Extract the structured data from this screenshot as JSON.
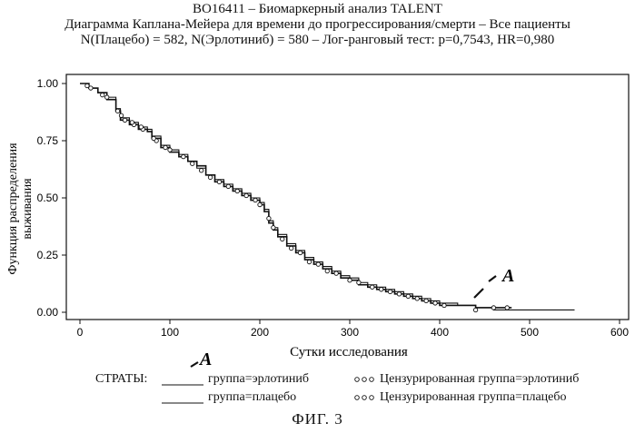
{
  "header": {
    "line1": "BO16411 – Биомаркерный анализ TALENT",
    "line2": "Диаграмма Каплана-Мейера для времени до прогрессирования/смерти – Все пациенты",
    "line3": "N(Плацебо) = 582, N(Эрлотиниб) = 580 – Лог-ранговый тест: p=0,7543, HR=0,980"
  },
  "chart_data": {
    "type": "line",
    "title": "Диаграмма Каплана-Мейера для времени до прогрессирования/смерти – Все пациенты",
    "xlabel": "Сутки исследования",
    "ylabel": "Функция распределения выживания",
    "xlim": [
      0,
      600
    ],
    "ylim": [
      0,
      1.0
    ],
    "x_ticks": [
      0,
      100,
      200,
      300,
      400,
      500,
      600
    ],
    "y_ticks": [
      0.0,
      0.25,
      0.5,
      0.75,
      1.0
    ],
    "x_tick_labels": [
      "0",
      "100",
      "200",
      "300",
      "400",
      "500",
      "600"
    ],
    "y_tick_labels": [
      "0.00",
      "0.25",
      "0.50",
      "0.75",
      "1.00"
    ],
    "grid": false,
    "series": [
      {
        "name": "группа=эрлотиниб",
        "x": [
          0,
          10,
          20,
          30,
          40,
          45,
          55,
          65,
          75,
          80,
          90,
          100,
          110,
          120,
          130,
          140,
          150,
          160,
          170,
          180,
          190,
          200,
          205,
          210,
          215,
          220,
          230,
          240,
          250,
          260,
          270,
          280,
          290,
          300,
          310,
          320,
          330,
          340,
          350,
          360,
          370,
          380,
          390,
          400,
          420,
          440,
          460,
          480
        ],
        "y": [
          1.0,
          0.98,
          0.96,
          0.93,
          0.88,
          0.84,
          0.82,
          0.8,
          0.79,
          0.76,
          0.72,
          0.7,
          0.68,
          0.66,
          0.64,
          0.6,
          0.57,
          0.55,
          0.53,
          0.51,
          0.49,
          0.47,
          0.44,
          0.39,
          0.36,
          0.33,
          0.29,
          0.26,
          0.23,
          0.21,
          0.19,
          0.17,
          0.15,
          0.14,
          0.12,
          0.11,
          0.1,
          0.09,
          0.08,
          0.07,
          0.06,
          0.05,
          0.04,
          0.03,
          0.03,
          0.02,
          0.02,
          0.02
        ]
      },
      {
        "name": "группа=плацебо",
        "x": [
          0,
          10,
          20,
          30,
          40,
          45,
          55,
          65,
          75,
          80,
          90,
          100,
          110,
          120,
          130,
          140,
          150,
          160,
          170,
          180,
          190,
          200,
          205,
          210,
          215,
          220,
          230,
          240,
          250,
          260,
          270,
          280,
          290,
          300,
          310,
          320,
          330,
          340,
          350,
          360,
          370,
          380,
          390,
          400,
          420,
          440,
          460,
          480,
          500,
          520,
          550
        ],
        "y": [
          1.0,
          0.98,
          0.96,
          0.94,
          0.89,
          0.85,
          0.83,
          0.81,
          0.8,
          0.77,
          0.73,
          0.71,
          0.69,
          0.66,
          0.63,
          0.6,
          0.58,
          0.56,
          0.54,
          0.52,
          0.5,
          0.48,
          0.45,
          0.4,
          0.37,
          0.34,
          0.3,
          0.27,
          0.24,
          0.22,
          0.2,
          0.18,
          0.16,
          0.15,
          0.13,
          0.12,
          0.11,
          0.1,
          0.09,
          0.08,
          0.07,
          0.06,
          0.05,
          0.04,
          0.03,
          0.02,
          0.01,
          0.01,
          0.01,
          0.01,
          0.01
        ]
      }
    ],
    "censored_markers": {
      "эрлотиниб": [
        [
          8,
          0.99
        ],
        [
          25,
          0.95
        ],
        [
          42,
          0.88
        ],
        [
          50,
          0.84
        ],
        [
          60,
          0.82
        ],
        [
          70,
          0.8
        ],
        [
          85,
          0.75
        ],
        [
          100,
          0.71
        ],
        [
          125,
          0.65
        ],
        [
          145,
          0.59
        ],
        [
          165,
          0.55
        ],
        [
          185,
          0.51
        ],
        [
          200,
          0.47
        ],
        [
          215,
          0.37
        ],
        [
          235,
          0.28
        ],
        [
          255,
          0.22
        ],
        [
          275,
          0.18
        ],
        [
          300,
          0.14
        ],
        [
          325,
          0.11
        ],
        [
          345,
          0.09
        ],
        [
          365,
          0.07
        ],
        [
          385,
          0.05
        ],
        [
          405,
          0.03
        ],
        [
          460,
          0.02
        ],
        [
          475,
          0.02
        ]
      ],
      "плацебо": [
        [
          12,
          0.98
        ],
        [
          30,
          0.94
        ],
        [
          46,
          0.86
        ],
        [
          58,
          0.83
        ],
        [
          68,
          0.81
        ],
        [
          82,
          0.76
        ],
        [
          95,
          0.72
        ],
        [
          115,
          0.68
        ],
        [
          135,
          0.62
        ],
        [
          155,
          0.57
        ],
        [
          175,
          0.53
        ],
        [
          195,
          0.49
        ],
        [
          210,
          0.41
        ],
        [
          225,
          0.32
        ],
        [
          245,
          0.26
        ],
        [
          265,
          0.21
        ],
        [
          285,
          0.17
        ],
        [
          310,
          0.13
        ],
        [
          335,
          0.1
        ],
        [
          355,
          0.08
        ],
        [
          375,
          0.06
        ],
        [
          395,
          0.04
        ],
        [
          440,
          0.01
        ]
      ]
    },
    "annotations": [
      "A",
      "A"
    ]
  },
  "legend": {
    "prefix": "СТРАТЫ:",
    "items": [
      {
        "label": "группа=эрлотиниб",
        "kind": "line"
      },
      {
        "label": "группа=плацебо",
        "kind": "line"
      },
      {
        "label": "Цензурированная группа=эрлотиниб",
        "kind": "marker"
      },
      {
        "label": "Цензурированная группа=плацебо",
        "kind": "marker"
      }
    ]
  },
  "figure_label": "ФИГ. 3"
}
